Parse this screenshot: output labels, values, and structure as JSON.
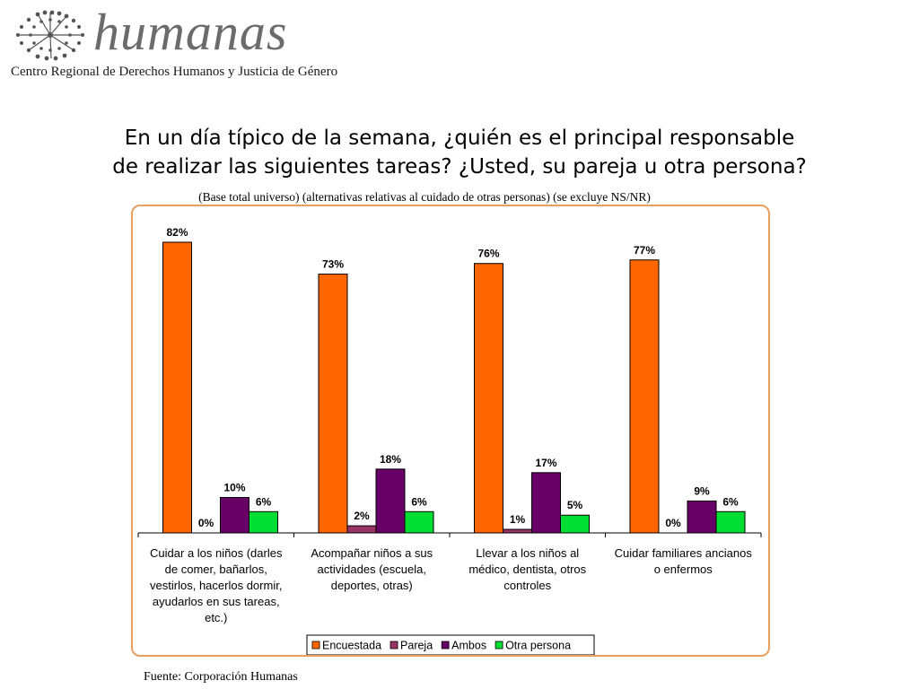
{
  "logo": {
    "brand": "humanas",
    "tagline": "Centro Regional de Derechos Humanos y Justicia de Género"
  },
  "title": {
    "line1": "En un día típico de la semana, ¿quién es el principal responsable",
    "line2": "de realizar las siguientes tareas? ¿Usted, su pareja u otra persona?"
  },
  "subtitle": "(Base total universo) (alternativas relativas al cuidado de otras personas) (se excluye NS/NR)",
  "source": "Fuente: Corporación Humanas",
  "chart_data": {
    "type": "bar",
    "title": "",
    "xlabel": "",
    "ylabel": "",
    "ylim": [
      0,
      82
    ],
    "grid": false,
    "legend_position": "bottom",
    "categories": [
      "Cuidar a los niños (darles de comer, bañarlos, vestirlos, hacerlos dormir, ayudarlos en sus tareas, etc.)",
      "Acompañar niños a sus actividades (escuela, deportes, otras)",
      "Llevar a los niños al médico, dentista, otros controles",
      "Cuidar familiares ancianos o enfermos"
    ],
    "category_lines": [
      [
        "Cuidar a los niños (darles",
        "de comer, bañarlos,",
        "vestirlos, hacerlos dormir,",
        "ayudarlos en sus tareas,",
        "etc.)"
      ],
      [
        "Acompañar niños a sus",
        "actividades (escuela,",
        "deportes, otras)"
      ],
      [
        "Llevar a los niños al",
        "médico, dentista, otros",
        "controles"
      ],
      [
        "Cuidar familiares ancianos",
        "o enfermos"
      ]
    ],
    "series": [
      {
        "name": "Encuestada",
        "color": "#ff6600",
        "values": [
          82,
          73,
          76,
          77
        ],
        "labels": [
          "82%",
          "73%",
          "76%",
          "77%"
        ]
      },
      {
        "name": "Pareja",
        "color": "#993366",
        "values": [
          0,
          2,
          1,
          0
        ],
        "labels": [
          "0%",
          "2%",
          "1%",
          "0%"
        ]
      },
      {
        "name": "Ambos",
        "color": "#660066",
        "values": [
          10,
          18,
          17,
          9
        ],
        "labels": [
          "10%",
          "18%",
          "17%",
          "9%"
        ]
      },
      {
        "name": "Otra persona",
        "color": "#00dd33",
        "values": [
          6,
          6,
          5,
          6
        ],
        "labels": [
          "6%",
          "6%",
          "5%",
          "6%"
        ]
      }
    ]
  }
}
